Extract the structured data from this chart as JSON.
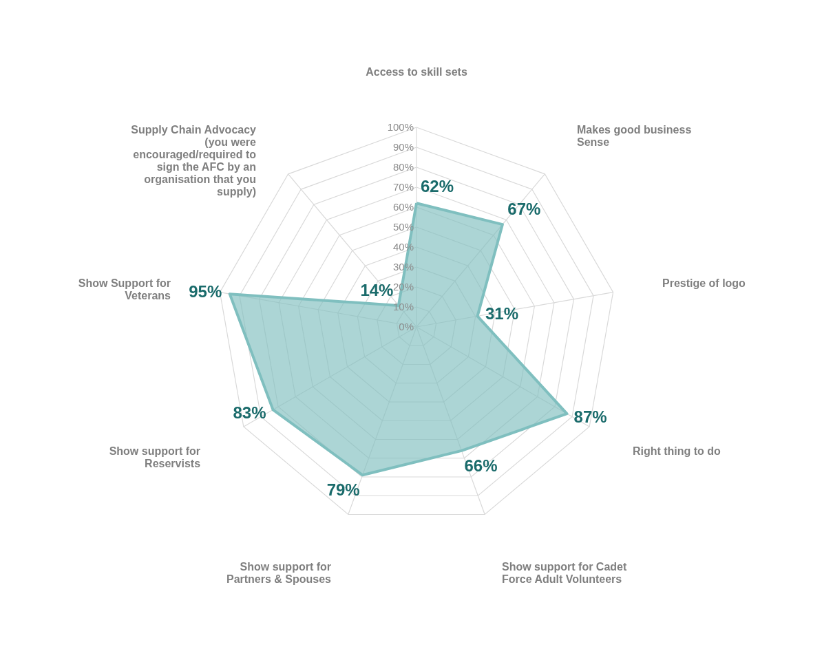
{
  "chart_data": {
    "type": "radar",
    "categories": [
      "Access to skill sets",
      "Makes good business Sense",
      "Prestige of logo",
      "Right thing to do",
      "Show support for Cadet Force Adult Volunteers",
      "Show support for Partners & Spouses",
      "Show support for Reservists",
      "Show Support for Veterans",
      "Supply Chain Advocacy (you were encouraged/required to sign the AFC by an organisation that you supply)"
    ],
    "series": [
      {
        "color": "#7fbfbf",
        "values": [
          62,
          67,
          31,
          87,
          66,
          79,
          83,
          95,
          14
        ],
        "value_labels": [
          "62%",
          "67%",
          "31%",
          "87%",
          "66%",
          "79%",
          "83%",
          "95%",
          "14%"
        ]
      }
    ],
    "ylim": [
      0,
      100
    ],
    "yticks": [
      {
        "value": 0,
        "label": "0%"
      },
      {
        "value": 10,
        "label": "10%"
      },
      {
        "value": 20,
        "label": "20%"
      },
      {
        "value": 30,
        "label": "30%"
      },
      {
        "value": 40,
        "label": "40%"
      },
      {
        "value": 50,
        "label": "50%"
      },
      {
        "value": 60,
        "label": "60%"
      },
      {
        "value": 70,
        "label": "70%"
      },
      {
        "value": 80,
        "label": "80%"
      },
      {
        "value": 90,
        "label": "90%"
      },
      {
        "value": 100,
        "label": "100%"
      }
    ],
    "grid": true
  }
}
